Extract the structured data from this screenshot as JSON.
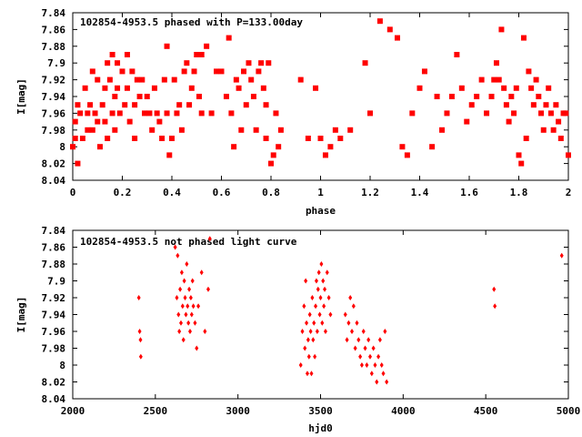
{
  "colors": {
    "points": "#ff0000",
    "axes": "#000000",
    "background": "#ffffff"
  },
  "chart_data": [
    {
      "type": "scatter",
      "title": "102854-4953.5 phased with P=133.00day",
      "xlabel": "phase",
      "ylabel": "I[mag]",
      "xlim": [
        0,
        2
      ],
      "ylim": [
        8.04,
        7.84
      ],
      "y_inverted": true,
      "grid": false,
      "marker": "star",
      "x_ticks": [
        "0",
        "0.2",
        "0.4",
        "0.6",
        "0.8",
        "1",
        "1.2",
        "1.4",
        "1.6",
        "1.8",
        "2"
      ],
      "y_ticks": [
        "7.84",
        "7.86",
        "7.88",
        "7.9",
        "7.92",
        "7.94",
        "7.96",
        "7.98",
        "8",
        "8.02",
        "8.04"
      ],
      "points": [
        [
          0.0,
          8.0
        ],
        [
          0.01,
          7.97
        ],
        [
          0.01,
          7.99
        ],
        [
          0.02,
          7.95
        ],
        [
          0.02,
          8.02
        ],
        [
          0.03,
          7.96
        ],
        [
          0.04,
          7.99
        ],
        [
          0.05,
          7.93
        ],
        [
          0.06,
          7.96
        ],
        [
          0.06,
          7.98
        ],
        [
          0.07,
          7.95
        ],
        [
          0.08,
          7.91
        ],
        [
          0.08,
          7.98
        ],
        [
          0.09,
          7.96
        ],
        [
          0.1,
          7.92
        ],
        [
          0.1,
          7.97
        ],
        [
          0.11,
          8.0
        ],
        [
          0.12,
          7.95
        ],
        [
          0.13,
          7.93
        ],
        [
          0.13,
          7.97
        ],
        [
          0.14,
          7.9
        ],
        [
          0.14,
          7.99
        ],
        [
          0.15,
          7.92
        ],
        [
          0.16,
          7.96
        ],
        [
          0.16,
          7.89
        ],
        [
          0.17,
          7.94
        ],
        [
          0.17,
          7.98
        ],
        [
          0.18,
          7.9
        ],
        [
          0.18,
          7.93
        ],
        [
          0.19,
          7.96
        ],
        [
          0.2,
          7.91
        ],
        [
          0.21,
          7.95
        ],
        [
          0.22,
          7.89
        ],
        [
          0.22,
          7.93
        ],
        [
          0.23,
          7.97
        ],
        [
          0.24,
          7.91
        ],
        [
          0.25,
          7.95
        ],
        [
          0.25,
          7.99
        ],
        [
          0.26,
          7.92
        ],
        [
          0.27,
          7.94
        ],
        [
          0.28,
          7.92
        ],
        [
          0.29,
          7.96
        ],
        [
          0.3,
          7.94
        ],
        [
          0.31,
          7.96
        ],
        [
          0.32,
          7.98
        ],
        [
          0.33,
          7.93
        ],
        [
          0.34,
          7.96
        ],
        [
          0.35,
          7.97
        ],
        [
          0.36,
          7.99
        ],
        [
          0.37,
          7.92
        ],
        [
          0.38,
          7.96
        ],
        [
          0.38,
          7.88
        ],
        [
          0.39,
          8.01
        ],
        [
          0.4,
          7.99
        ],
        [
          0.41,
          7.92
        ],
        [
          0.42,
          7.96
        ],
        [
          0.43,
          7.95
        ],
        [
          0.44,
          7.98
        ],
        [
          0.45,
          7.91
        ],
        [
          0.46,
          7.9
        ],
        [
          0.47,
          7.95
        ],
        [
          0.48,
          7.93
        ],
        [
          0.49,
          7.91
        ],
        [
          0.5,
          7.89
        ],
        [
          0.51,
          7.94
        ],
        [
          0.52,
          7.96
        ],
        [
          0.52,
          7.89
        ],
        [
          0.54,
          7.88
        ],
        [
          0.56,
          7.96
        ],
        [
          0.58,
          7.91
        ],
        [
          0.6,
          7.91
        ],
        [
          0.62,
          7.94
        ],
        [
          0.63,
          7.87
        ],
        [
          0.64,
          7.96
        ],
        [
          0.65,
          8.0
        ],
        [
          0.66,
          7.92
        ],
        [
          0.67,
          7.93
        ],
        [
          0.68,
          7.98
        ],
        [
          0.69,
          7.91
        ],
        [
          0.7,
          7.95
        ],
        [
          0.71,
          7.9
        ],
        [
          0.72,
          7.92
        ],
        [
          0.73,
          7.94
        ],
        [
          0.74,
          7.98
        ],
        [
          0.75,
          7.91
        ],
        [
          0.76,
          7.9
        ],
        [
          0.77,
          7.93
        ],
        [
          0.78,
          7.95
        ],
        [
          0.78,
          7.99
        ],
        [
          0.79,
          7.9
        ],
        [
          0.8,
          8.02
        ],
        [
          0.81,
          8.01
        ],
        [
          0.82,
          7.96
        ],
        [
          0.83,
          8.0
        ],
        [
          0.84,
          7.98
        ],
        [
          0.92,
          7.92
        ],
        [
          0.95,
          7.99
        ],
        [
          0.98,
          7.93
        ],
        [
          1.0,
          7.99
        ],
        [
          1.02,
          8.01
        ],
        [
          1.04,
          8.0
        ],
        [
          1.06,
          7.98
        ],
        [
          1.08,
          7.99
        ],
        [
          1.12,
          7.98
        ],
        [
          1.18,
          7.9
        ],
        [
          1.2,
          7.96
        ],
        [
          1.24,
          7.85
        ],
        [
          1.28,
          7.86
        ],
        [
          1.31,
          7.87
        ],
        [
          1.33,
          8.0
        ],
        [
          1.35,
          8.01
        ],
        [
          1.37,
          7.96
        ],
        [
          1.4,
          7.93
        ],
        [
          1.42,
          7.91
        ],
        [
          1.45,
          8.0
        ],
        [
          1.47,
          7.94
        ],
        [
          1.49,
          7.98
        ],
        [
          1.51,
          7.96
        ],
        [
          1.53,
          7.94
        ],
        [
          1.55,
          7.89
        ],
        [
          1.57,
          7.93
        ],
        [
          1.59,
          7.97
        ],
        [
          1.61,
          7.95
        ],
        [
          1.63,
          7.94
        ],
        [
          1.65,
          7.92
        ],
        [
          1.67,
          7.96
        ],
        [
          1.69,
          7.94
        ],
        [
          1.7,
          7.92
        ],
        [
          1.71,
          7.9
        ],
        [
          1.72,
          7.92
        ],
        [
          1.73,
          7.86
        ],
        [
          1.74,
          7.93
        ],
        [
          1.75,
          7.95
        ],
        [
          1.76,
          7.97
        ],
        [
          1.77,
          7.94
        ],
        [
          1.78,
          7.96
        ],
        [
          1.79,
          7.93
        ],
        [
          1.8,
          8.01
        ],
        [
          1.81,
          8.02
        ],
        [
          1.82,
          7.87
        ],
        [
          1.83,
          7.99
        ],
        [
          1.84,
          7.91
        ],
        [
          1.85,
          7.93
        ],
        [
          1.86,
          7.95
        ],
        [
          1.87,
          7.92
        ],
        [
          1.88,
          7.94
        ],
        [
          1.89,
          7.96
        ],
        [
          1.9,
          7.98
        ],
        [
          1.91,
          7.95
        ],
        [
          1.92,
          7.93
        ],
        [
          1.93,
          7.96
        ],
        [
          1.94,
          7.98
        ],
        [
          1.95,
          7.95
        ],
        [
          1.96,
          7.97
        ],
        [
          1.97,
          7.99
        ],
        [
          1.98,
          7.96
        ],
        [
          1.99,
          7.96
        ],
        [
          2.0,
          8.01
        ]
      ]
    },
    {
      "type": "scatter",
      "title": "102854-4953.5 not phased light curve",
      "xlabel": "hjd0",
      "ylabel": "I[mag]",
      "xlim": [
        2000,
        5000
      ],
      "ylim": [
        8.04,
        7.84
      ],
      "y_inverted": true,
      "grid": false,
      "marker": "diamond",
      "x_ticks": [
        "2000",
        "2500",
        "3000",
        "3500",
        "4000",
        "4500",
        "5000"
      ],
      "y_ticks": [
        "7.84",
        "7.86",
        "7.88",
        "7.9",
        "7.92",
        "7.94",
        "7.96",
        "7.98",
        "8",
        "8.02",
        "8.04"
      ],
      "points": [
        [
          2400,
          7.92
        ],
        [
          2405,
          7.96
        ],
        [
          2410,
          7.97
        ],
        [
          2412,
          7.99
        ],
        [
          2620,
          7.86
        ],
        [
          2630,
          7.92
        ],
        [
          2635,
          7.87
        ],
        [
          2640,
          7.94
        ],
        [
          2645,
          7.96
        ],
        [
          2650,
          7.91
        ],
        [
          2655,
          7.95
        ],
        [
          2660,
          7.89
        ],
        [
          2665,
          7.93
        ],
        [
          2670,
          7.97
        ],
        [
          2675,
          7.9
        ],
        [
          2680,
          7.92
        ],
        [
          2685,
          7.94
        ],
        [
          2690,
          7.88
        ],
        [
          2695,
          7.93
        ],
        [
          2700,
          7.95
        ],
        [
          2705,
          7.91
        ],
        [
          2710,
          7.96
        ],
        [
          2715,
          7.92
        ],
        [
          2720,
          7.94
        ],
        [
          2725,
          7.9
        ],
        [
          2730,
          7.93
        ],
        [
          2740,
          7.95
        ],
        [
          2750,
          7.98
        ],
        [
          2760,
          7.93
        ],
        [
          2780,
          7.89
        ],
        [
          2800,
          7.96
        ],
        [
          2820,
          7.91
        ],
        [
          2830,
          7.85
        ],
        [
          3380,
          8.0
        ],
        [
          3390,
          7.96
        ],
        [
          3400,
          7.93
        ],
        [
          3405,
          7.98
        ],
        [
          3410,
          7.9
        ],
        [
          3415,
          7.95
        ],
        [
          3420,
          8.01
        ],
        [
          3425,
          7.97
        ],
        [
          3430,
          7.99
        ],
        [
          3435,
          7.94
        ],
        [
          3440,
          7.96
        ],
        [
          3445,
          8.01
        ],
        [
          3450,
          7.92
        ],
        [
          3455,
          7.97
        ],
        [
          3460,
          7.95
        ],
        [
          3465,
          7.99
        ],
        [
          3470,
          7.93
        ],
        [
          3475,
          7.9
        ],
        [
          3480,
          7.96
        ],
        [
          3485,
          7.91
        ],
        [
          3490,
          7.89
        ],
        [
          3495,
          7.94
        ],
        [
          3500,
          7.92
        ],
        [
          3505,
          7.88
        ],
        [
          3510,
          7.95
        ],
        [
          3515,
          7.9
        ],
        [
          3520,
          7.93
        ],
        [
          3525,
          7.91
        ],
        [
          3530,
          7.96
        ],
        [
          3540,
          7.89
        ],
        [
          3550,
          7.92
        ],
        [
          3560,
          7.94
        ],
        [
          3650,
          7.94
        ],
        [
          3660,
          7.97
        ],
        [
          3670,
          7.95
        ],
        [
          3680,
          7.92
        ],
        [
          3690,
          7.96
        ],
        [
          3700,
          7.93
        ],
        [
          3710,
          7.98
        ],
        [
          3720,
          7.95
        ],
        [
          3730,
          7.97
        ],
        [
          3740,
          7.99
        ],
        [
          3750,
          8.0
        ],
        [
          3760,
          7.96
        ],
        [
          3770,
          7.98
        ],
        [
          3780,
          8.0
        ],
        [
          3790,
          7.97
        ],
        [
          3800,
          7.99
        ],
        [
          3810,
          8.01
        ],
        [
          3820,
          7.98
        ],
        [
          3830,
          8.0
        ],
        [
          3840,
          8.02
        ],
        [
          3850,
          7.99
        ],
        [
          3860,
          7.97
        ],
        [
          3870,
          8.0
        ],
        [
          3880,
          8.01
        ],
        [
          3890,
          7.96
        ],
        [
          3900,
          8.02
        ],
        [
          4550,
          7.91
        ],
        [
          4555,
          7.93
        ],
        [
          4960,
          7.87
        ]
      ]
    }
  ]
}
